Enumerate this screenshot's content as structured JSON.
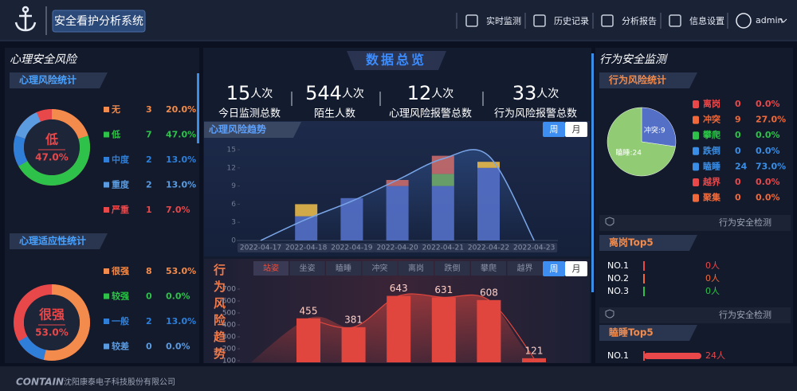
{
  "header": {
    "title": "安全看护分析系统",
    "nav": [
      "实时监测",
      "历史记录",
      "分析报告",
      "信息设置"
    ],
    "user": "admin"
  },
  "left": {
    "title": "心理安全风险",
    "risk": {
      "title": "心理风险统计",
      "items": [
        {
          "name": "无",
          "count": 3,
          "percent": "20.0%",
          "color": "#f28b4b"
        },
        {
          "name": "低",
          "count": 7,
          "percent": "47.0%",
          "color": "#2ec24a"
        },
        {
          "name": "中度",
          "count": 2,
          "percent": "13.0%",
          "color": "#2f7fd8"
        },
        {
          "name": "重度",
          "count": 2,
          "percent": "13.0%",
          "color": "#5b9be0"
        },
        {
          "name": "严重",
          "count": 1,
          "percent": "7.0%",
          "color": "#e8484a"
        }
      ]
    },
    "adapt": {
      "title": "心理适应性统计",
      "items": [
        {
          "name": "很强",
          "count": 8,
          "percent": "53.0%",
          "color": "#f28b4b"
        },
        {
          "name": "较强",
          "count": 0,
          "percent": "0.0%",
          "color": "#2ec24a"
        },
        {
          "name": "一般",
          "count": 2,
          "percent": "13.0%",
          "color": "#2f7fd8"
        },
        {
          "name": "较差",
          "count": 0,
          "percent": "0.0%",
          "color": "#5b9be0"
        }
      ]
    }
  },
  "overview": {
    "title": "数据总览",
    "stats": [
      {
        "value": 15,
        "unit": "人次",
        "label": "今日监测总数"
      },
      {
        "value": 544,
        "unit": "人次",
        "label": "陌生人数"
      },
      {
        "value": 12,
        "unit": "人次",
        "label": "心理风险报警总数"
      },
      {
        "value": 33,
        "unit": "人次",
        "label": "行为风险报警总数"
      }
    ]
  },
  "trend": {
    "type": "bar",
    "title": "心理风险趋势",
    "toggle": [
      "周",
      "月"
    ],
    "categories": [
      "2022-04-17",
      "2022-04-18",
      "2022-04-19",
      "2022-04-20",
      "2022-04-21",
      "2022-04-22",
      "2022-04-23"
    ],
    "ylim": [
      0,
      15
    ],
    "yticks": [
      0,
      3,
      6,
      9,
      12,
      15
    ],
    "series": [
      {
        "color": "#5470c6",
        "values": [
          0,
          4,
          7,
          9,
          9,
          12,
          0
        ]
      },
      {
        "color": "#6fa86a",
        "values": [
          0,
          0,
          0,
          0,
          2,
          0,
          0
        ]
      },
      {
        "color": "#c86a6a",
        "values": [
          0,
          0,
          0,
          1,
          3,
          0,
          0
        ]
      },
      {
        "color": "#e6b84a",
        "values": [
          0,
          2,
          0,
          0,
          0,
          1,
          0
        ]
      }
    ],
    "line": {
      "color": "#7aa6e8",
      "values": [
        0,
        3.5,
        6.5,
        10,
        13.5,
        14,
        0
      ]
    }
  },
  "behavior": {
    "type": "bar",
    "title": "行为风险趋势",
    "tabs": [
      "站姿",
      "坐姿",
      "瞌睡",
      "冲突",
      "离岗",
      "跌倒",
      "攀爬",
      "越界"
    ],
    "toggle": [
      "周",
      "月"
    ],
    "categories": [
      null,
      null,
      null,
      null,
      null,
      null
    ],
    "values": [
      455,
      381,
      643,
      631,
      608,
      121
    ],
    "color": "#e0463e",
    "ylim": [
      0,
      700
    ],
    "yticks": [
      100,
      200,
      300,
      400,
      500,
      600,
      700
    ]
  },
  "right": {
    "title": "行为安全监测",
    "stats": {
      "title": "行为风险统计",
      "slices": [
        {
          "label": "冲突:9",
          "value": 9,
          "color": "#5470c6"
        },
        {
          "label": "瞌睡:24",
          "value": 24,
          "color": "#91cc75"
        }
      ],
      "items": [
        {
          "name": "离岗",
          "count": 0,
          "percent": "0.0%",
          "color": "#e8484a"
        },
        {
          "name": "冲突",
          "count": 9,
          "percent": "27.0%",
          "color": "#f0693a"
        },
        {
          "name": "攀爬",
          "count": 0,
          "percent": "0.0%",
          "color": "#2ec24a"
        },
        {
          "name": "跌倒",
          "count": 0,
          "percent": "0.0%",
          "color": "#3a8ee6"
        },
        {
          "name": "瞌睡",
          "count": 24,
          "percent": "73.0%",
          "color": "#3a8ee6"
        },
        {
          "name": "越界",
          "count": 0,
          "percent": "0.0%",
          "color": "#e8484a"
        },
        {
          "name": "聚集",
          "count": 0,
          "percent": "0.0%",
          "color": "#f0693a"
        }
      ]
    },
    "tops": [
      {
        "section": "行为安全检测",
        "title": "离岗Top5",
        "rows": [
          {
            "rank": "NO.1",
            "value": 0,
            "label": "0人",
            "color": "#e8484a"
          },
          {
            "rank": "NO.2",
            "value": 0,
            "label": "0人",
            "color": "#f0693a"
          },
          {
            "rank": "NO.3",
            "value": 0,
            "label": "0人",
            "color": "#2ec24a"
          }
        ]
      },
      {
        "section": "行为安全检测",
        "title": "瞌睡Top5",
        "rows": [
          {
            "rank": "NO.1",
            "value": 24,
            "label": "24人",
            "color": "#e8484a"
          }
        ]
      }
    ]
  },
  "footer": {
    "brand": "CONTAIN",
    "company": "沈阳康泰电子科技股份有限公司"
  }
}
